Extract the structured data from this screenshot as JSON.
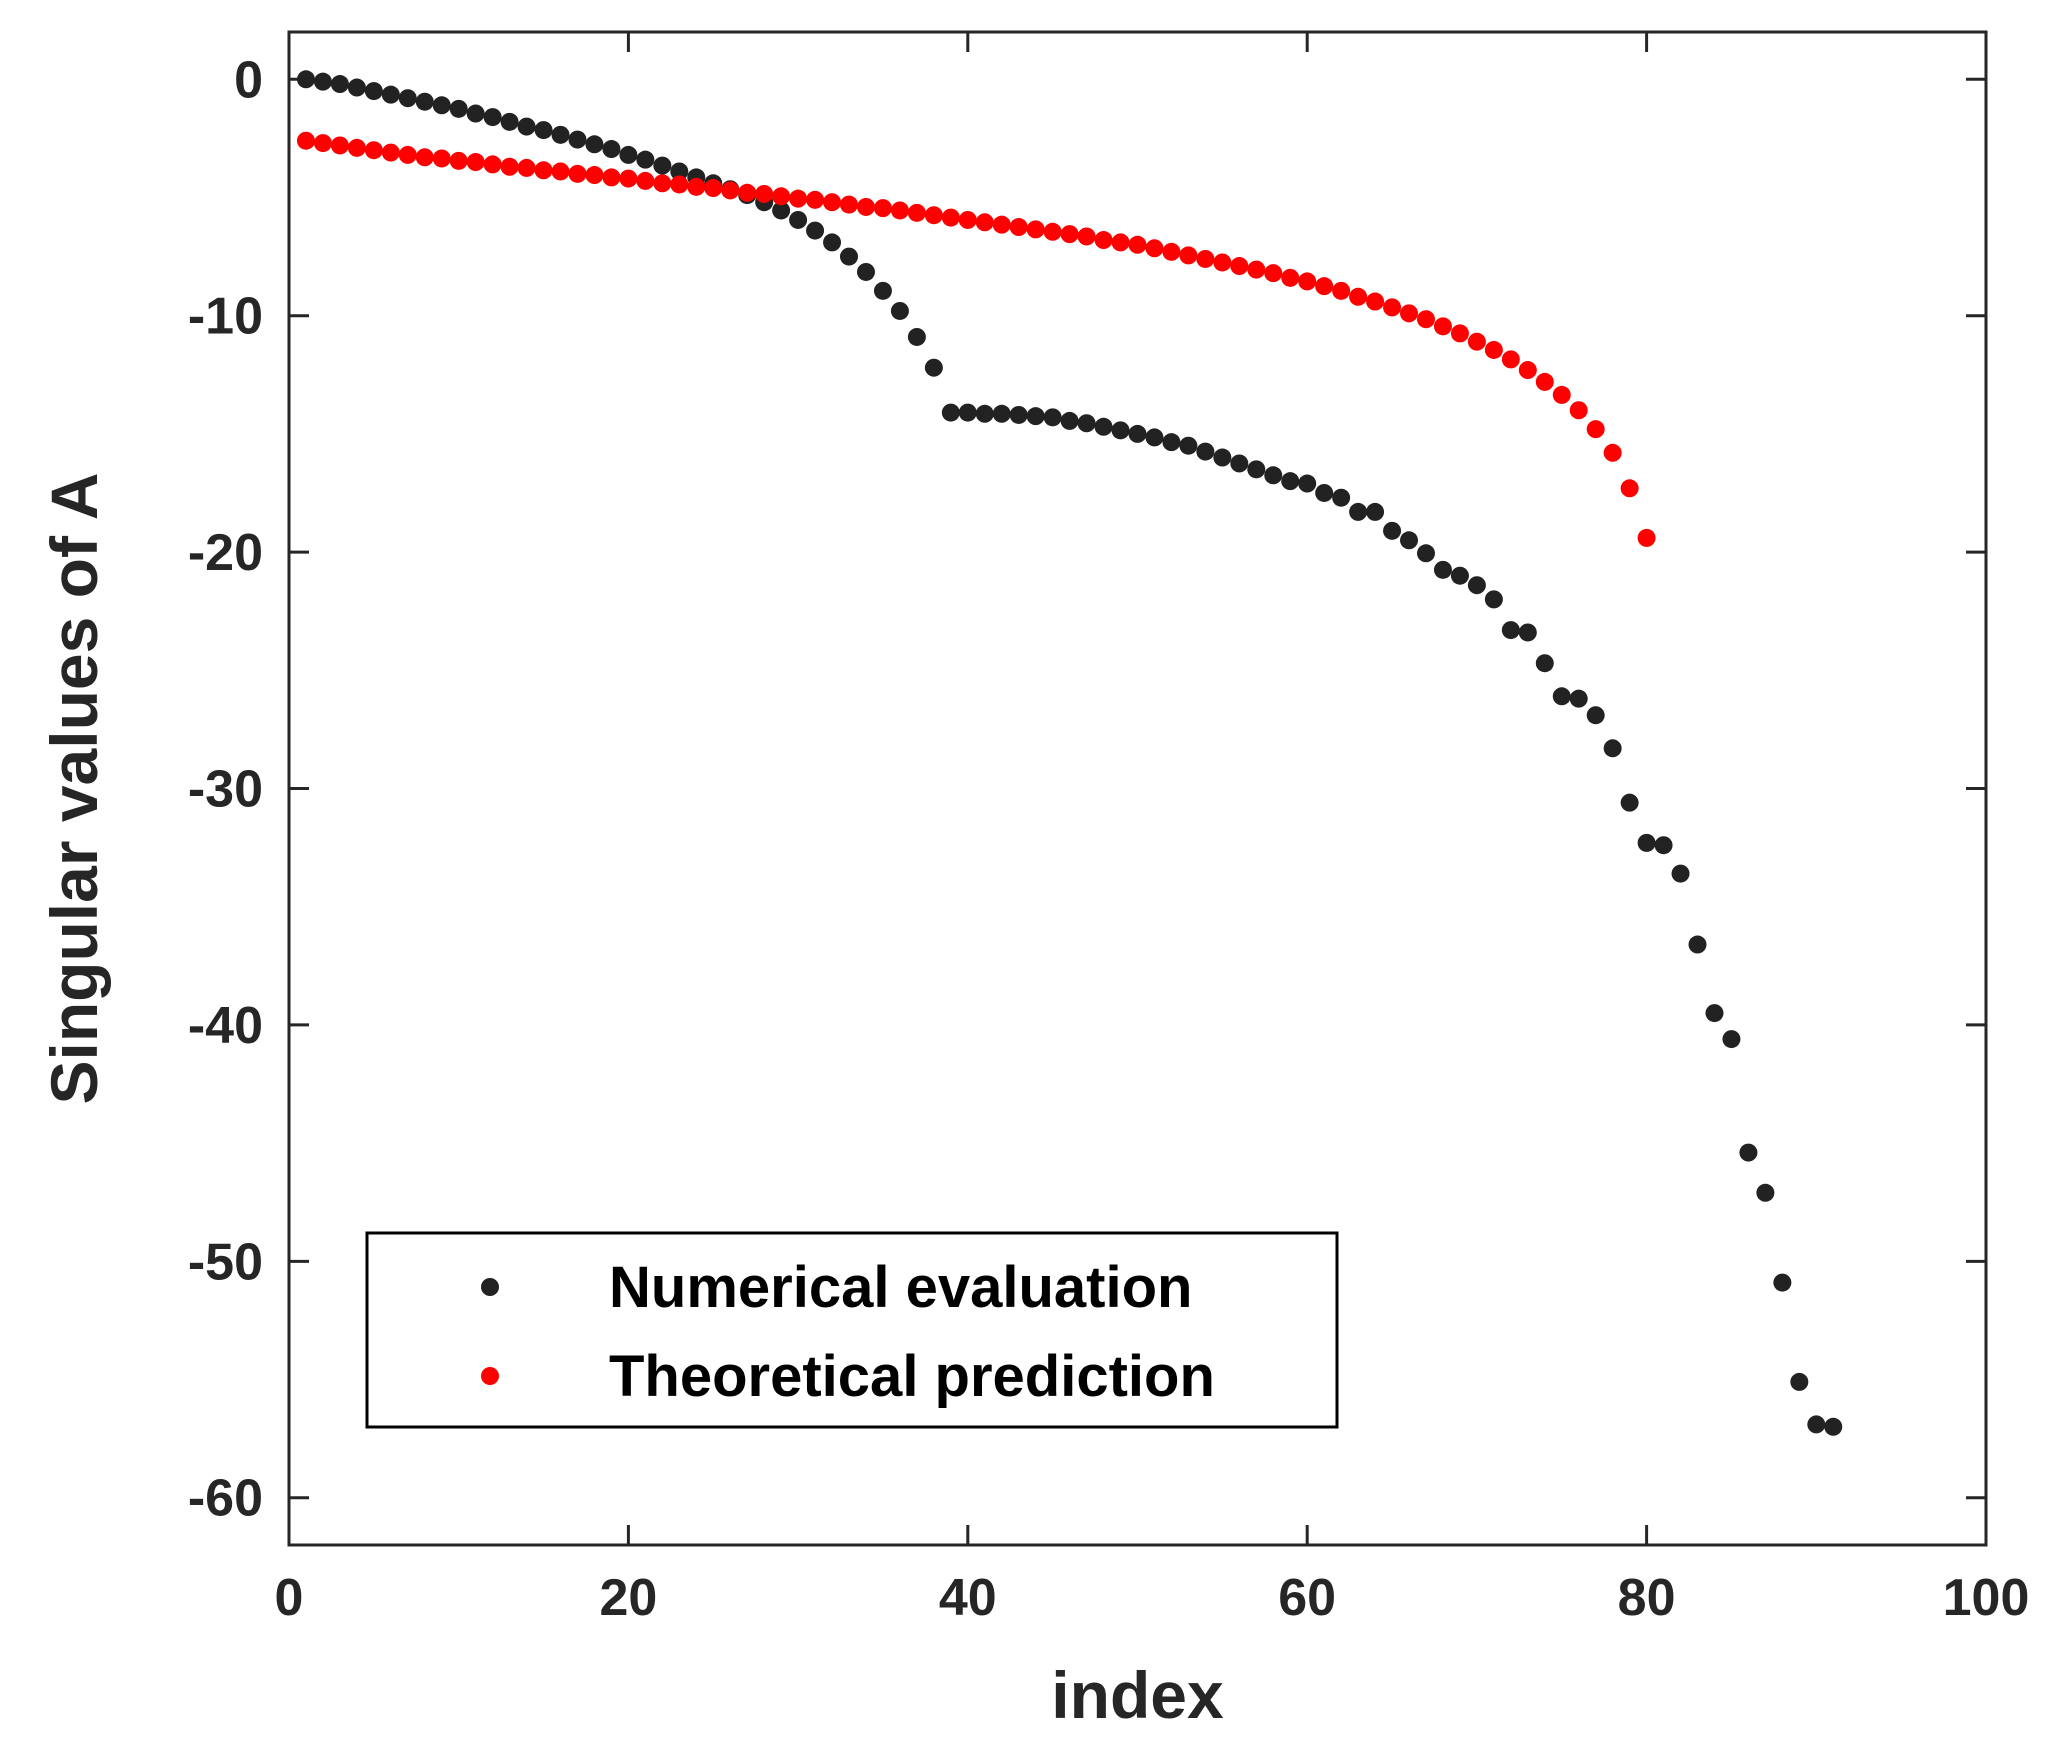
{
  "chart_data": {
    "type": "scatter",
    "title": "",
    "xlabel": "index",
    "ylabel": "Singular values of A",
    "xlim": [
      0,
      100
    ],
    "ylim": [
      -62,
      2
    ],
    "xticks": [
      0,
      20,
      40,
      60,
      80,
      100
    ],
    "yticks": [
      0,
      -10,
      -20,
      -30,
      -40,
      -50,
      -60
    ],
    "xtick_labels": [
      "0",
      "20",
      "40",
      "60",
      "80",
      "100"
    ],
    "ytick_labels": [
      "0",
      "-10",
      "-20",
      "-30",
      "-40",
      "-50",
      "-60"
    ],
    "grid": false,
    "legend_position": "bottom-left",
    "series": [
      {
        "name": "Numerical evaluation",
        "color": "#222222",
        "x": [
          1,
          2,
          3,
          4,
          5,
          6,
          7,
          8,
          9,
          10,
          11,
          12,
          13,
          14,
          15,
          16,
          17,
          18,
          19,
          20,
          21,
          22,
          23,
          24,
          25,
          26,
          27,
          28,
          29,
          30,
          31,
          32,
          33,
          34,
          35,
          36,
          37,
          38,
          39,
          40,
          41,
          42,
          43,
          44,
          45,
          46,
          47,
          48,
          49,
          50,
          51,
          52,
          53,
          54,
          55,
          56,
          57,
          58,
          59,
          60,
          61,
          62,
          63,
          64,
          65,
          66,
          67,
          68,
          69,
          70,
          71,
          72,
          73,
          74,
          75,
          76,
          77,
          78,
          79,
          80,
          81,
          82,
          83,
          84,
          85,
          86,
          87,
          88,
          89,
          90,
          91
        ],
        "values": [
          0,
          -0.1,
          -0.2,
          -0.35,
          -0.5,
          -0.65,
          -0.8,
          -0.95,
          -1.1,
          -1.25,
          -1.45,
          -1.6,
          -1.8,
          -2.0,
          -2.15,
          -2.35,
          -2.55,
          -2.75,
          -2.95,
          -3.2,
          -3.4,
          -3.65,
          -3.9,
          -4.15,
          -4.4,
          -4.65,
          -4.9,
          -5.2,
          -5.55,
          -5.95,
          -6.4,
          -6.9,
          -7.5,
          -8.15,
          -8.95,
          -9.8,
          -10.9,
          -12.2,
          -14.1,
          -14.1,
          -14.15,
          -14.15,
          -14.2,
          -14.25,
          -14.3,
          -14.45,
          -14.55,
          -14.7,
          -14.85,
          -15.0,
          -15.15,
          -15.35,
          -15.5,
          -15.75,
          -16.0,
          -16.25,
          -16.5,
          -16.75,
          -17.0,
          -17.1,
          -17.5,
          -17.7,
          -18.3,
          -18.3,
          -19.1,
          -19.5,
          -20.05,
          -20.75,
          -21.0,
          -21.4,
          -22.0,
          -23.3,
          -23.4,
          -24.7,
          -26.1,
          -26.2,
          -26.9,
          -28.3,
          -30.6,
          -32.3,
          -32.4,
          -33.6,
          -36.6,
          -39.5,
          -40.6,
          -45.4,
          -47.1,
          -50.9,
          -55.1,
          -56.9,
          -57.0
        ]
      },
      {
        "name": "Theoretical prediction",
        "color": "#ff0000",
        "x": [
          1,
          2,
          3,
          4,
          5,
          6,
          7,
          8,
          9,
          10,
          11,
          12,
          13,
          14,
          15,
          16,
          17,
          18,
          19,
          20,
          21,
          22,
          23,
          24,
          25,
          26,
          27,
          28,
          29,
          30,
          31,
          32,
          33,
          34,
          35,
          36,
          37,
          38,
          39,
          40,
          41,
          42,
          43,
          44,
          45,
          46,
          47,
          48,
          49,
          50,
          51,
          52,
          53,
          54,
          55,
          56,
          57,
          58,
          59,
          60,
          61,
          62,
          63,
          64,
          65,
          66,
          67,
          68,
          69,
          70,
          71,
          72,
          73,
          74,
          75,
          76,
          77,
          78,
          79,
          80
        ],
        "values": [
          -2.6,
          -2.7,
          -2.8,
          -2.9,
          -3.0,
          -3.1,
          -3.2,
          -3.3,
          -3.35,
          -3.45,
          -3.5,
          -3.6,
          -3.7,
          -3.75,
          -3.85,
          -3.9,
          -4.0,
          -4.05,
          -4.15,
          -4.2,
          -4.3,
          -4.4,
          -4.45,
          -4.55,
          -4.6,
          -4.7,
          -4.8,
          -4.85,
          -4.95,
          -5.05,
          -5.1,
          -5.2,
          -5.3,
          -5.4,
          -5.45,
          -5.55,
          -5.65,
          -5.75,
          -5.85,
          -5.95,
          -6.05,
          -6.15,
          -6.25,
          -6.35,
          -6.45,
          -6.55,
          -6.65,
          -6.8,
          -6.9,
          -7.0,
          -7.15,
          -7.3,
          -7.45,
          -7.6,
          -7.75,
          -7.9,
          -8.05,
          -8.2,
          -8.4,
          -8.55,
          -8.75,
          -8.95,
          -9.2,
          -9.4,
          -9.65,
          -9.9,
          -10.15,
          -10.45,
          -10.75,
          -11.1,
          -11.45,
          -11.85,
          -12.3,
          -12.8,
          -13.35,
          -14.0,
          -14.8,
          -15.8,
          -17.3,
          -19.4
        ]
      }
    ]
  }
}
